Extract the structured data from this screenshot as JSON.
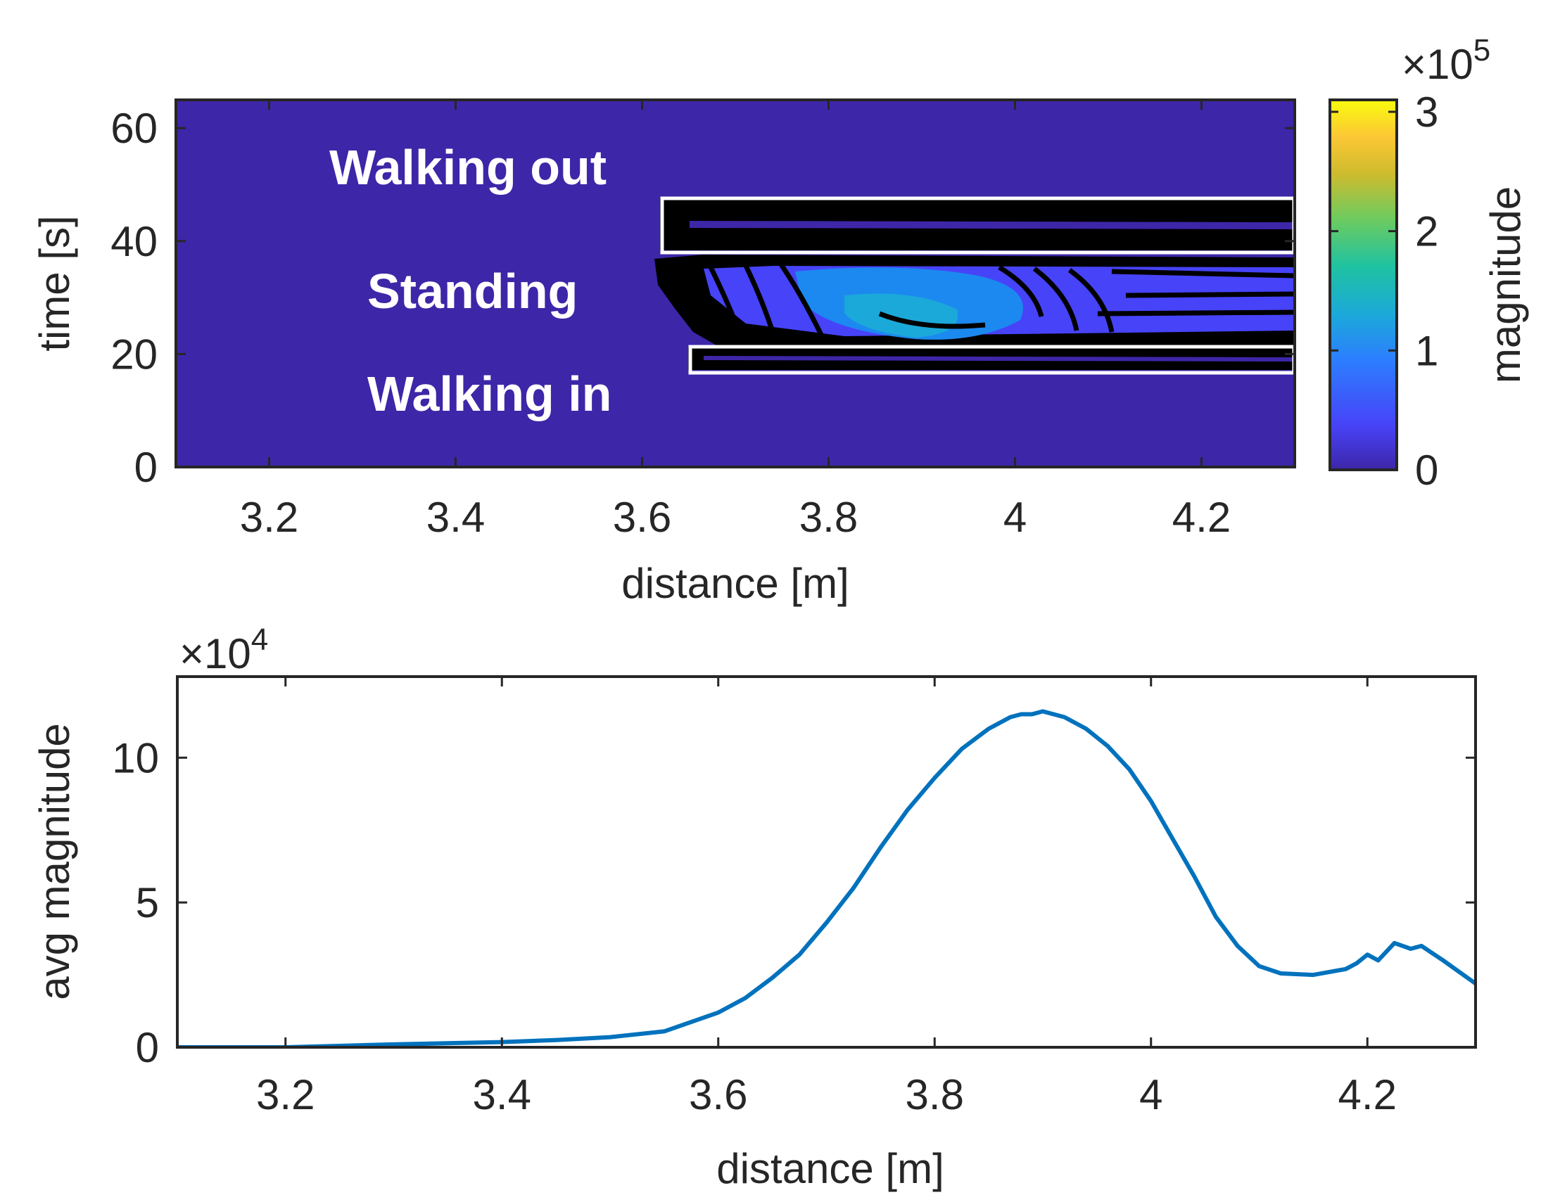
{
  "chart_data": [
    {
      "type": "heatmap",
      "title": "",
      "xlabel": "distance [m]",
      "ylabel": "time [s]",
      "xlim": [
        3.1,
        4.3
      ],
      "ylim": [
        0,
        65
      ],
      "xticks": [
        "3.2",
        "3.4",
        "3.6",
        "3.8",
        "4",
        "4.2"
      ],
      "xtick_values": [
        3.2,
        3.4,
        3.6,
        3.8,
        4.0,
        4.2
      ],
      "yticks": [
        "0",
        "20",
        "40",
        "60"
      ],
      "ytick_values": [
        0,
        20,
        40,
        60
      ],
      "background_color": "#3e26a8",
      "regions": [
        {
          "label": "Walking out",
          "x_range": [
            3.62,
            4.3
          ],
          "t_range": [
            38,
            47
          ]
        },
        {
          "label": "Standing",
          "x_range": [
            3.6,
            4.3
          ],
          "t_range": [
            22,
            37
          ]
        },
        {
          "label": "Walking in",
          "x_range": [
            3.65,
            4.3
          ],
          "t_range": [
            17,
            21
          ]
        }
      ],
      "colorbar": {
        "label": "magnitude",
        "exponent": "×10⁵",
        "exponent_base": "×10",
        "exponent_power": "5",
        "range": [
          0,
          3.1
        ],
        "ticks": [
          "0",
          "1",
          "2",
          "3"
        ],
        "tick_values": [
          0,
          1,
          2,
          3
        ],
        "colors": [
          "#3e26a8",
          "#4743f8",
          "#2c7ffe",
          "#1ba9d9",
          "#1fc2a1",
          "#6ecb5e",
          "#cebb2e",
          "#fcc735",
          "#f9fb0e"
        ]
      }
    },
    {
      "type": "line",
      "title": "",
      "xlabel": "distance [m]",
      "ylabel": "avg magnitude",
      "xlim": [
        3.1,
        4.3
      ],
      "ylim": [
        0,
        12.8
      ],
      "exponent": "×10⁴",
      "exponent_base": "×10",
      "exponent_power": "4",
      "xticks": [
        "3.2",
        "3.4",
        "3.6",
        "3.8",
        "4",
        "4.2"
      ],
      "xtick_values": [
        3.2,
        3.4,
        3.6,
        3.8,
        4.0,
        4.2
      ],
      "yticks": [
        "0",
        "5",
        "10"
      ],
      "ytick_values": [
        0,
        5,
        10
      ],
      "series": [
        {
          "name": "avg magnitude",
          "color": "#0072bd",
          "x": [
            3.1,
            3.2,
            3.3,
            3.4,
            3.45,
            3.5,
            3.55,
            3.6,
            3.625,
            3.65,
            3.675,
            3.7,
            3.725,
            3.75,
            3.775,
            3.8,
            3.825,
            3.85,
            3.87,
            3.88,
            3.89,
            3.9,
            3.92,
            3.94,
            3.96,
            3.98,
            4.0,
            4.02,
            4.04,
            4.06,
            4.08,
            4.1,
            4.12,
            4.15,
            4.18,
            4.19,
            4.2,
            4.21,
            4.225,
            4.24,
            4.25,
            4.27,
            4.3
          ],
          "y": [
            0.0,
            0.0,
            0.1,
            0.18,
            0.25,
            0.35,
            0.55,
            1.2,
            1.7,
            2.4,
            3.2,
            4.3,
            5.5,
            6.9,
            8.2,
            9.3,
            10.3,
            11.0,
            11.4,
            11.5,
            11.5,
            11.6,
            11.4,
            11.0,
            10.4,
            9.6,
            8.5,
            7.2,
            5.9,
            4.5,
            3.5,
            2.8,
            2.55,
            2.5,
            2.7,
            2.9,
            3.2,
            3.0,
            3.6,
            3.4,
            3.5,
            3.0,
            2.2
          ]
        }
      ]
    }
  ]
}
